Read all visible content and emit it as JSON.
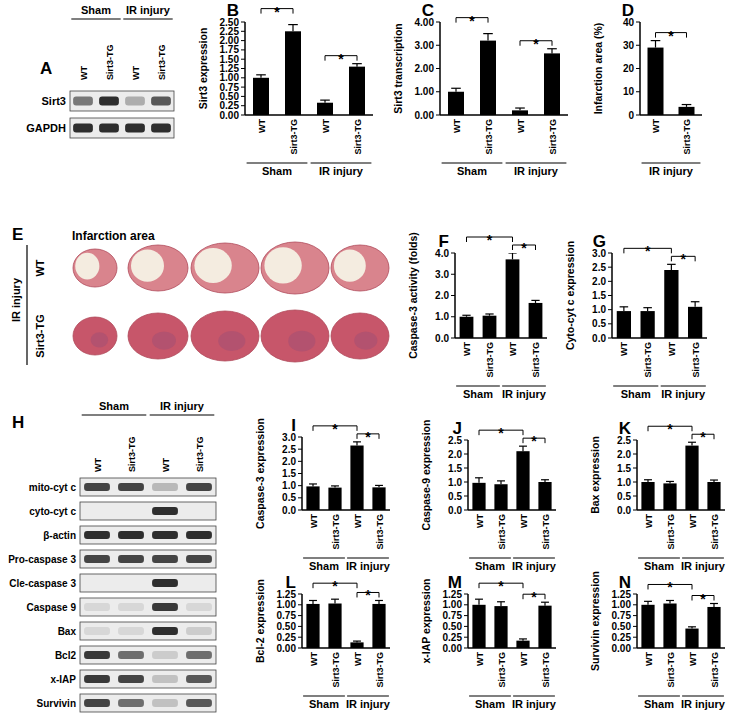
{
  "chart_data": [
    {
      "panel": "B",
      "type": "bar",
      "ylabel": "Sirt3 expression",
      "categories": [
        "WT",
        "Sirt3-TG",
        "WT",
        "Sirt3-TG"
      ],
      "values": [
        1.0,
        2.25,
        0.33,
        1.3
      ],
      "errors": [
        0.08,
        0.18,
        0.07,
        0.08
      ],
      "color": "#000000",
      "ylim": [
        0,
        2.5
      ],
      "yticks": [
        {
          "value": 0,
          "label": "0.00"
        },
        {
          "value": 0.25,
          "label": "0.25"
        },
        {
          "value": 0.5,
          "label": "0.50"
        },
        {
          "value": 0.75,
          "label": "0.75"
        },
        {
          "value": 1,
          "label": "1.00"
        },
        {
          "value": 1.25,
          "label": "1.25"
        },
        {
          "value": 1.5,
          "label": "1.50"
        },
        {
          "value": 1.75,
          "label": "1.75"
        },
        {
          "value": 2,
          "label": "2.00"
        },
        {
          "value": 2.25,
          "label": "2.25"
        },
        {
          "value": 2.5,
          "label": "2.50"
        }
      ],
      "groups": [
        {
          "label": "Sham",
          "start": 0,
          "end": 1
        },
        {
          "label": "IR injury",
          "start": 2,
          "end": 3
        }
      ],
      "significance": [
        {
          "from": 0,
          "to": 1,
          "label": "*"
        },
        {
          "from": 2,
          "to": 3,
          "label": "*"
        }
      ]
    },
    {
      "panel": "C",
      "type": "bar",
      "ylabel": "Sirt3 transcription",
      "categories": [
        "WT",
        "Sirt3-TG",
        "WT",
        "Sirt3-TG"
      ],
      "values": [
        1.0,
        3.2,
        0.2,
        2.65
      ],
      "errors": [
        0.15,
        0.3,
        0.1,
        0.2
      ],
      "color": "#000000",
      "ylim": [
        0,
        4
      ],
      "yticks": [
        {
          "value": 0,
          "label": "0.00"
        },
        {
          "value": 1,
          "label": "1.00"
        },
        {
          "value": 2,
          "label": "2.00"
        },
        {
          "value": 3,
          "label": "3.00"
        },
        {
          "value": 4,
          "label": "4.00"
        }
      ],
      "groups": [
        {
          "label": "Sham",
          "start": 0,
          "end": 1
        },
        {
          "label": "IR injury",
          "start": 2,
          "end": 3
        }
      ],
      "significance": [
        {
          "from": 0,
          "to": 1,
          "label": "*"
        },
        {
          "from": 2,
          "to": 3,
          "label": "*"
        }
      ]
    },
    {
      "panel": "D",
      "type": "bar",
      "ylabel": "Infarction area (%)",
      "categories": [
        "WT",
        "Sirt3-TG"
      ],
      "values": [
        29,
        3.5
      ],
      "errors": [
        3,
        1
      ],
      "color": "#000000",
      "ylim": [
        0,
        40
      ],
      "yticks": [
        0,
        10,
        20,
        30,
        40
      ],
      "groups": [
        {
          "label": "IR injury",
          "start": 0,
          "end": 1
        }
      ],
      "significance": [
        {
          "from": 0,
          "to": 1,
          "label": "*"
        }
      ]
    },
    {
      "panel": "F",
      "type": "bar",
      "ylabel": "Caspase-3 activity (folds)",
      "categories": [
        "WT",
        "Sirt3-TG",
        "WT",
        "Sirt3-TG"
      ],
      "values": [
        1.0,
        1.05,
        3.7,
        1.65
      ],
      "errors": [
        0.07,
        0.08,
        0.3,
        0.12
      ],
      "color": "#000000",
      "ylim": [
        0,
        4
      ],
      "yticks": [
        {
          "value": 0,
          "label": "0.0"
        },
        {
          "value": 1,
          "label": "1.0"
        },
        {
          "value": 2,
          "label": "2.0"
        },
        {
          "value": 3,
          "label": "3.0"
        },
        {
          "value": 4,
          "label": "4.0"
        }
      ],
      "groups": [
        {
          "label": "Sham",
          "start": 0,
          "end": 1
        },
        {
          "label": "IR injury",
          "start": 2,
          "end": 3
        }
      ],
      "significance": [
        {
          "from": 0,
          "to": 2,
          "label": "*"
        },
        {
          "from": 2,
          "to": 3,
          "label": "*"
        }
      ]
    },
    {
      "panel": "G",
      "type": "bar",
      "ylabel": "Cyto-cyt c expression",
      "categories": [
        "WT",
        "Sirt3-TG",
        "WT",
        "Sirt3-TG"
      ],
      "values": [
        0.95,
        0.95,
        2.4,
        1.1
      ],
      "errors": [
        0.15,
        0.12,
        0.2,
        0.18
      ],
      "color": "#000000",
      "ylim": [
        0,
        3
      ],
      "yticks": [
        {
          "value": 0,
          "label": "0.0"
        },
        {
          "value": 0.5,
          "label": "0.5"
        },
        {
          "value": 1,
          "label": "1.0"
        },
        {
          "value": 1.5,
          "label": "1.5"
        },
        {
          "value": 2,
          "label": "2.0"
        },
        {
          "value": 2.5,
          "label": "2.5"
        },
        {
          "value": 3,
          "label": "3.0"
        }
      ],
      "groups": [
        {
          "label": "Sham",
          "start": 0,
          "end": 1
        },
        {
          "label": "IR injury",
          "start": 2,
          "end": 3
        }
      ],
      "significance": [
        {
          "from": 0,
          "to": 2,
          "label": "*"
        },
        {
          "from": 2,
          "to": 3,
          "label": "*"
        }
      ]
    },
    {
      "panel": "I",
      "type": "bar",
      "ylabel": "Caspase-3 expression",
      "categories": [
        "WT",
        "Sirt3-TG",
        "WT",
        "Sirt3-TG"
      ],
      "values": [
        0.97,
        0.92,
        2.65,
        0.93
      ],
      "errors": [
        0.1,
        0.07,
        0.15,
        0.08
      ],
      "color": "#000000",
      "ylim": [
        0,
        3
      ],
      "yticks": [
        {
          "value": 0,
          "label": "0.0"
        },
        {
          "value": 0.5,
          "label": "0.5"
        },
        {
          "value": 1,
          "label": "1.0"
        },
        {
          "value": 1.5,
          "label": "1.5"
        },
        {
          "value": 2,
          "label": "2.0"
        },
        {
          "value": 2.5,
          "label": "2.5"
        },
        {
          "value": 3,
          "label": "3.0"
        }
      ],
      "groups": [
        {
          "label": "Sham",
          "start": 0,
          "end": 1
        },
        {
          "label": "IR injury",
          "start": 2,
          "end": 3
        }
      ],
      "significance": [
        {
          "from": 0,
          "to": 2,
          "label": "*"
        },
        {
          "from": 2,
          "to": 3,
          "label": "*"
        }
      ]
    },
    {
      "panel": "J",
      "type": "bar",
      "ylabel": "Caspase-9 expression",
      "categories": [
        "WT",
        "Sirt3-TG",
        "WT",
        "Sirt3-TG"
      ],
      "values": [
        0.97,
        0.92,
        2.1,
        1.0
      ],
      "errors": [
        0.18,
        0.12,
        0.18,
        0.08
      ],
      "color": "#000000",
      "ylim": [
        0,
        2.5
      ],
      "yticks": [
        {
          "value": 0,
          "label": "0.0"
        },
        {
          "value": 0.5,
          "label": "0.5"
        },
        {
          "value": 1,
          "label": "1.0"
        },
        {
          "value": 1.5,
          "label": "1.5"
        },
        {
          "value": 2,
          "label": "2.0"
        },
        {
          "value": 2.5,
          "label": "2.5"
        }
      ],
      "groups": [
        {
          "label": "Sham",
          "start": 0,
          "end": 1
        },
        {
          "label": "IR injury",
          "start": 2,
          "end": 3
        }
      ],
      "significance": [
        {
          "from": 0,
          "to": 2,
          "label": "*"
        },
        {
          "from": 2,
          "to": 3,
          "label": "*"
        }
      ]
    },
    {
      "panel": "K",
      "type": "bar",
      "ylabel": "Bax expression",
      "categories": [
        "WT",
        "Sirt3-TG",
        "WT",
        "Sirt3-TG"
      ],
      "values": [
        1.0,
        0.95,
        2.3,
        1.0
      ],
      "errors": [
        0.08,
        0.07,
        0.12,
        0.07
      ],
      "color": "#000000",
      "ylim": [
        0,
        2.5
      ],
      "yticks": [
        {
          "value": 0,
          "label": "0.0"
        },
        {
          "value": 0.5,
          "label": "0.5"
        },
        {
          "value": 1,
          "label": "1.0"
        },
        {
          "value": 1.5,
          "label": "1.5"
        },
        {
          "value": 2,
          "label": "2.0"
        },
        {
          "value": 2.5,
          "label": "2.5"
        }
      ],
      "groups": [
        {
          "label": "Sham",
          "start": 0,
          "end": 1
        },
        {
          "label": "IR injury",
          "start": 2,
          "end": 3
        }
      ],
      "significance": [
        {
          "from": 0,
          "to": 2,
          "label": "*"
        },
        {
          "from": 2,
          "to": 3,
          "label": "*"
        }
      ]
    },
    {
      "panel": "L",
      "type": "bar",
      "ylabel": "Bcl-2 expression",
      "categories": [
        "WT",
        "Sirt3-TG",
        "WT",
        "Sirt3-TG"
      ],
      "values": [
        1.02,
        1.03,
        0.13,
        1.02
      ],
      "errors": [
        0.08,
        0.1,
        0.03,
        0.08
      ],
      "color": "#000000",
      "ylim": [
        0,
        1.25
      ],
      "yticks": [
        {
          "value": 0,
          "label": "0.00"
        },
        {
          "value": 0.25,
          "label": "0.25"
        },
        {
          "value": 0.5,
          "label": "0.50"
        },
        {
          "value": 0.75,
          "label": "0.75"
        },
        {
          "value": 1,
          "label": "1.00"
        },
        {
          "value": 1.25,
          "label": "1.25"
        }
      ],
      "groups": [
        {
          "label": "Sham",
          "start": 0,
          "end": 1
        },
        {
          "label": "IR injury",
          "start": 2,
          "end": 3
        }
      ],
      "significance": [
        {
          "from": 0,
          "to": 2,
          "label": "*"
        },
        {
          "from": 2,
          "to": 3,
          "label": "*"
        }
      ]
    },
    {
      "panel": "M",
      "type": "bar",
      "ylabel": "x-IAP expression",
      "categories": [
        "WT",
        "Sirt3-TG",
        "WT",
        "Sirt3-TG"
      ],
      "values": [
        1.0,
        0.97,
        0.17,
        0.98
      ],
      "errors": [
        0.13,
        0.1,
        0.04,
        0.08
      ],
      "color": "#000000",
      "ylim": [
        0,
        1.25
      ],
      "yticks": [
        {
          "value": 0,
          "label": "0.00"
        },
        {
          "value": 0.25,
          "label": "0.25"
        },
        {
          "value": 0.5,
          "label": "0.50"
        },
        {
          "value": 0.75,
          "label": "0.75"
        },
        {
          "value": 1,
          "label": "1.00"
        },
        {
          "value": 1.25,
          "label": "1.25"
        }
      ],
      "groups": [
        {
          "label": "Sham",
          "start": 0,
          "end": 1
        },
        {
          "label": "IR injury",
          "start": 2,
          "end": 3
        }
      ],
      "significance": [
        {
          "from": 0,
          "to": 2,
          "label": "*"
        },
        {
          "from": 2,
          "to": 3,
          "label": "*"
        }
      ]
    },
    {
      "panel": "N",
      "type": "bar",
      "ylabel": "Survivin expression",
      "categories": [
        "WT",
        "Sirt3-TG",
        "WT",
        "Sirt3-TG"
      ],
      "values": [
        1.0,
        1.03,
        0.45,
        0.95
      ],
      "errors": [
        0.08,
        0.07,
        0.04,
        0.08
      ],
      "color": "#000000",
      "ylim": [
        0,
        1.25
      ],
      "yticks": [
        {
          "value": 0,
          "label": "0.00"
        },
        {
          "value": 0.25,
          "label": "0.25"
        },
        {
          "value": 0.5,
          "label": "0.50"
        },
        {
          "value": 0.75,
          "label": "0.75"
        },
        {
          "value": 1,
          "label": "1.00"
        },
        {
          "value": 1.25,
          "label": "1.25"
        }
      ],
      "groups": [
        {
          "label": "Sham",
          "start": 0,
          "end": 1
        },
        {
          "label": "IR injury",
          "start": 2,
          "end": 3
        }
      ],
      "significance": [
        {
          "from": 0,
          "to": 2,
          "label": "*"
        },
        {
          "from": 2,
          "to": 3,
          "label": "*"
        }
      ]
    }
  ],
  "blot_a": {
    "panel": "A",
    "groups": [
      "Sham",
      "IR injury"
    ],
    "lanes": [
      "WT",
      "Sirt3-TG",
      "WT",
      "Sirt3-TG"
    ],
    "rows": [
      "Sirt3",
      "GAPDH"
    ]
  },
  "image_e": {
    "panel": "E",
    "title": "Infarction area",
    "group": "IR injury",
    "rows": [
      "WT",
      "Sirt3-TG"
    ]
  },
  "blot_h": {
    "panel": "H",
    "groups": [
      "Sham",
      "IR injury"
    ],
    "lanes": [
      "WT",
      "Sirt3-TG",
      "WT",
      "Sirt3-TG"
    ],
    "rows": [
      "mito-cyt c",
      "cyto-cyt c",
      "β-actin",
      "Pro-caspase 3",
      "Cle-caspase 3",
      "Caspase 9",
      "Bax",
      "Bcl2",
      "x-IAP",
      "Survivin"
    ]
  }
}
